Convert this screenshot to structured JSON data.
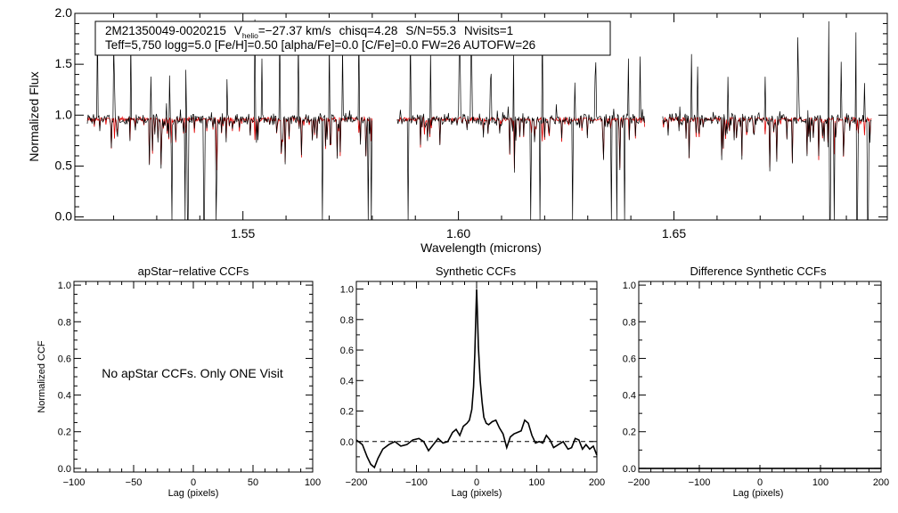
{
  "chart_data": [
    {
      "type": "line",
      "panel": "spectrum",
      "title": "2M21350049-0020215",
      "info_line1": {
        "vhelio_label": "V",
        "vhelio_sub": "helio",
        "vhelio_value": "=−27.37 km/s",
        "chisq": "chisq=4.28",
        "snr": "S/N=55.3",
        "nvisits": "Nvisits=1"
      },
      "info_line2": "Teff=5,750 logg=5.0 [Fe/H]=0.50 [alpha/Fe]=0.0 [C/Fe]=0.0 FW=26 AUTOFW=26",
      "xlabel": "Wavelength (microns)",
      "ylabel": "Normalized Flux",
      "xlim": [
        1.511,
        1.6995
      ],
      "ylim": [
        -0.03,
        2.0
      ],
      "xticks": [
        1.55,
        1.6,
        1.65
      ],
      "xtick_labels": [
        "1.55",
        "1.60",
        "1.65"
      ],
      "yticks": [
        0.0,
        0.5,
        1.0,
        1.5,
        2.0
      ],
      "ytick_labels": [
        "0.0",
        "0.5",
        "1.0",
        "1.5",
        "2.0"
      ],
      "chip_ranges": [
        [
          1.5139,
          1.58
        ],
        [
          1.5858,
          1.6433
        ],
        [
          1.6474,
          1.696
        ]
      ],
      "continuum": 0.96,
      "emission_spikes": [
        1.5162,
        1.5201,
        1.524,
        1.5287,
        1.533,
        1.5368,
        1.541,
        1.5463,
        1.5528,
        1.5544,
        1.5585,
        1.5629,
        1.57,
        1.5731,
        1.5769,
        1.5888,
        1.5935,
        1.6003,
        1.603,
        1.6075,
        1.6128,
        1.6195,
        1.627,
        1.6318,
        1.6355,
        1.6395,
        1.6422,
        1.654,
        1.6555,
        1.6625,
        1.6712,
        1.6788,
        1.686,
        1.6888,
        1.6922,
        1.6942
      ],
      "absorption_spikes": [
        1.5335,
        1.5366,
        1.5372,
        1.541,
        1.5438,
        1.5685,
        1.579,
        1.5798,
        1.5883,
        1.6168,
        1.6189,
        1.6265,
        1.6355,
        1.6368,
        1.6385,
        1.6862,
        1.6872,
        1.6925,
        1.695
      ],
      "series": [
        {
          "name": "observed",
          "color": "#000000"
        },
        {
          "name": "synthetic",
          "color": "#e00000"
        }
      ]
    },
    {
      "type": "line",
      "panel": "apstar",
      "title": "apStar−relative CCFs",
      "xlabel": "Lag (pixels)",
      "ylabel": "Normalized CCF",
      "xlim": [
        -100,
        100
      ],
      "ylim": [
        -0.02,
        1.02
      ],
      "xticks": [
        -100,
        -50,
        0,
        50,
        100
      ],
      "xtick_labels": [
        "−100",
        "−50",
        "0",
        "50",
        "100"
      ],
      "yticks": [
        0.0,
        0.2,
        0.4,
        0.6,
        0.8,
        1.0
      ],
      "ytick_labels": [
        "0.0",
        "0.2",
        "0.4",
        "0.6",
        "0.8",
        "1.0"
      ],
      "annotation": "No apStar CCFs.  Only ONE Visit",
      "series": []
    },
    {
      "type": "line",
      "panel": "synthetic",
      "title": "Synthetic CCFs",
      "xlabel": "Lag (pixels)",
      "ylabel": "",
      "xlim": [
        -200,
        200
      ],
      "ylim": [
        -0.2,
        1.05
      ],
      "xticks": [
        -200,
        -100,
        0,
        100,
        200
      ],
      "xtick_labels": [
        "−200",
        "−100",
        "0",
        "100",
        "200"
      ],
      "yticks": [
        0.0,
        0.2,
        0.4,
        0.6,
        0.8,
        1.0
      ],
      "ytick_labels": [
        "0.0",
        "0.2",
        "0.4",
        "0.6",
        "0.8",
        "1.0"
      ],
      "reference_line": 0.0,
      "series": [
        {
          "name": "Synthetic CCF",
          "x": [
            -200,
            -190,
            -182,
            -176,
            -170,
            -164,
            -156,
            -146,
            -136,
            -126,
            -116,
            -106,
            -96,
            -88,
            -80,
            -72,
            -64,
            -56,
            -48,
            -40,
            -34,
            -28,
            -22,
            -16,
            -12,
            -8,
            -5,
            -3,
            -1,
            0,
            1,
            3,
            6,
            9,
            12,
            16,
            20,
            26,
            32,
            38,
            44,
            50,
            56,
            62,
            68,
            74,
            80,
            86,
            92,
            98,
            104,
            110,
            116,
            122,
            128,
            136,
            144,
            152,
            158,
            164,
            170,
            176,
            182,
            188,
            194,
            200
          ],
          "y": [
            0.01,
            -0.02,
            -0.1,
            -0.15,
            -0.17,
            -0.11,
            -0.05,
            -0.02,
            0.0,
            -0.03,
            -0.02,
            0.01,
            0.02,
            0.0,
            -0.06,
            -0.02,
            0.02,
            -0.01,
            0.0,
            0.06,
            0.08,
            0.04,
            0.1,
            0.12,
            0.14,
            0.21,
            0.36,
            0.58,
            0.86,
            1.0,
            0.88,
            0.62,
            0.4,
            0.26,
            0.16,
            0.12,
            0.11,
            0.13,
            0.14,
            0.09,
            0.05,
            -0.04,
            0.03,
            0.05,
            0.06,
            0.07,
            0.14,
            0.12,
            0.04,
            -0.01,
            0.0,
            -0.01,
            0.04,
            0.01,
            -0.04,
            -0.02,
            0.0,
            -0.05,
            -0.04,
            0.02,
            0.01,
            -0.05,
            -0.02,
            -0.05,
            -0.03,
            -0.09
          ]
        }
      ]
    },
    {
      "type": "line",
      "panel": "difference",
      "title": "Difference Synthetic CCFs",
      "xlabel": "Lag (pixels)",
      "ylabel": "",
      "xlim": [
        -200,
        200
      ],
      "ylim": [
        -0.02,
        1.02
      ],
      "xticks": [
        -200,
        -100,
        0,
        100,
        200
      ],
      "xtick_labels": [
        "−200",
        "−100",
        "0",
        "100",
        "200"
      ],
      "yticks": [
        0.0,
        0.2,
        0.4,
        0.6,
        0.8,
        1.0
      ],
      "ytick_labels": [
        "0.0",
        "0.2",
        "0.4",
        "0.6",
        "0.8",
        "1.0"
      ],
      "series": [
        {
          "name": "Difference",
          "x": [
            -200,
            200
          ],
          "y": [
            0.0,
            0.0
          ]
        }
      ]
    }
  ]
}
